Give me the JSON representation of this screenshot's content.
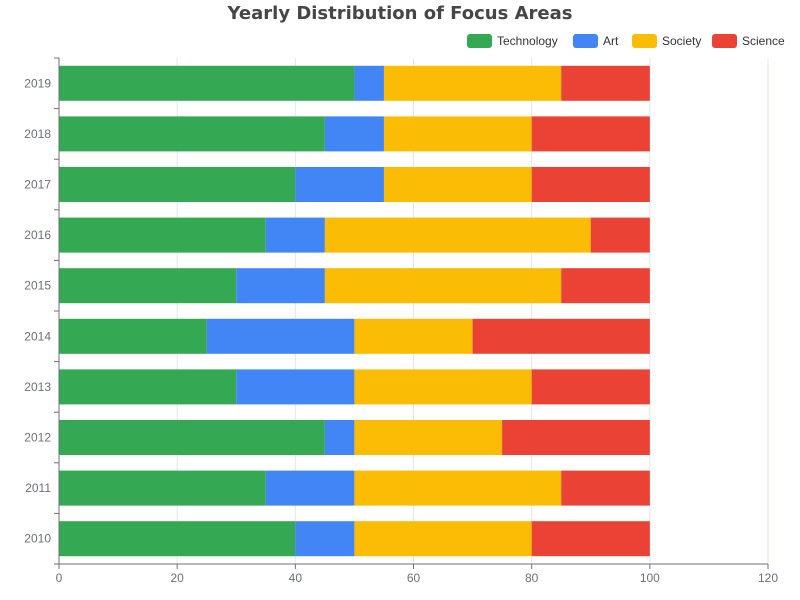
{
  "chart_data": {
    "type": "bar",
    "orientation": "horizontal",
    "stacked": true,
    "title": "Yearly Distribution of Focus Areas",
    "xlabel": "",
    "ylabel": "",
    "categories": [
      "2010",
      "2011",
      "2012",
      "2013",
      "2014",
      "2015",
      "2016",
      "2017",
      "2018",
      "2019"
    ],
    "xlim": [
      0,
      120
    ],
    "x_ticks": [
      0,
      20,
      40,
      60,
      80,
      100,
      120
    ],
    "grid": true,
    "legend_position": "top-right",
    "series": [
      {
        "name": "Technology",
        "color": "#34a853",
        "values": [
          40,
          35,
          45,
          30,
          25,
          30,
          35,
          40,
          45,
          50
        ]
      },
      {
        "name": "Art",
        "color": "#4285f4",
        "values": [
          10,
          15,
          5,
          20,
          25,
          15,
          10,
          15,
          10,
          5
        ]
      },
      {
        "name": "Society",
        "color": "#fbbc05",
        "values": [
          30,
          35,
          25,
          30,
          20,
          40,
          45,
          25,
          25,
          30
        ]
      },
      {
        "name": "Science",
        "color": "#ea4335",
        "values": [
          20,
          15,
          25,
          20,
          30,
          15,
          10,
          20,
          20,
          15
        ]
      }
    ]
  }
}
